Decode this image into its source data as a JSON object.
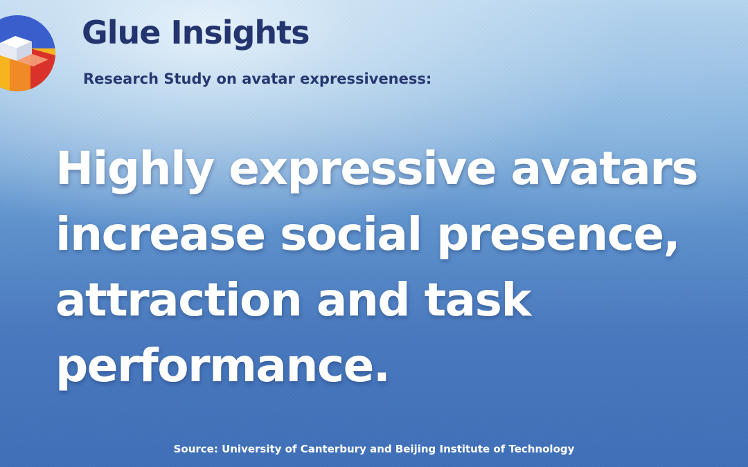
{
  "brand": {
    "logo_icon": "glue-cube-logo-icon",
    "title": "Glue Insights",
    "subtitle": "Research Study on avatar expressiveness:"
  },
  "headline": "Highly expressive avatars increase social presence, attraction and task performance.",
  "source": "Source: University of Canterbury and Beijing Institute of Technology",
  "colors": {
    "brand_navy": "#24346f",
    "headline_text": "#ffffff",
    "background_top": "#b9d6ef",
    "background_bottom": "#3f6fb7",
    "logo_orange": "#f08a24",
    "logo_red": "#d9322a",
    "logo_yellow": "#f6b41f",
    "logo_blue": "#3a5fcd"
  }
}
